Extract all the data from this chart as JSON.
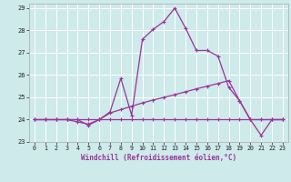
{
  "xlabel": "Windchill (Refroidissement éolien,°C)",
  "bg_color": "#ceeaea",
  "grid_color": "#ffffff",
  "line_color": "#993399",
  "xlim": [
    -0.5,
    23.5
  ],
  "ylim": [
    23.0,
    29.2
  ],
  "yticks": [
    23,
    24,
    25,
    26,
    27,
    28,
    29
  ],
  "xticks": [
    0,
    1,
    2,
    3,
    4,
    5,
    6,
    7,
    8,
    9,
    10,
    11,
    12,
    13,
    14,
    15,
    16,
    17,
    18,
    19,
    20,
    21,
    22,
    23
  ],
  "series_flat_y": [
    24,
    24,
    24,
    24,
    24,
    24,
    24,
    24,
    24,
    24,
    24,
    24,
    24,
    24,
    24,
    24,
    24,
    24,
    24,
    24,
    24,
    24,
    24,
    24
  ],
  "series_gentle_y": [
    24,
    24,
    24,
    24,
    23.9,
    23.8,
    24.0,
    24.3,
    24.45,
    24.6,
    24.75,
    24.88,
    25.0,
    25.12,
    25.25,
    25.38,
    25.5,
    25.62,
    25.75,
    24.85,
    24.0,
    24.0,
    24.0,
    24.0
  ],
  "series_peak_y": [
    24,
    24,
    24,
    24,
    24,
    23.75,
    24.0,
    24.35,
    25.85,
    24.2,
    27.6,
    28.05,
    28.4,
    29.0,
    28.1,
    27.1,
    27.1,
    26.85,
    25.45,
    24.85,
    24.0,
    23.3,
    24.0,
    24.0
  ],
  "marker_size": 2.5,
  "line_width": 0.9,
  "xlabel_fontsize": 5.5,
  "tick_fontsize": 4.8
}
